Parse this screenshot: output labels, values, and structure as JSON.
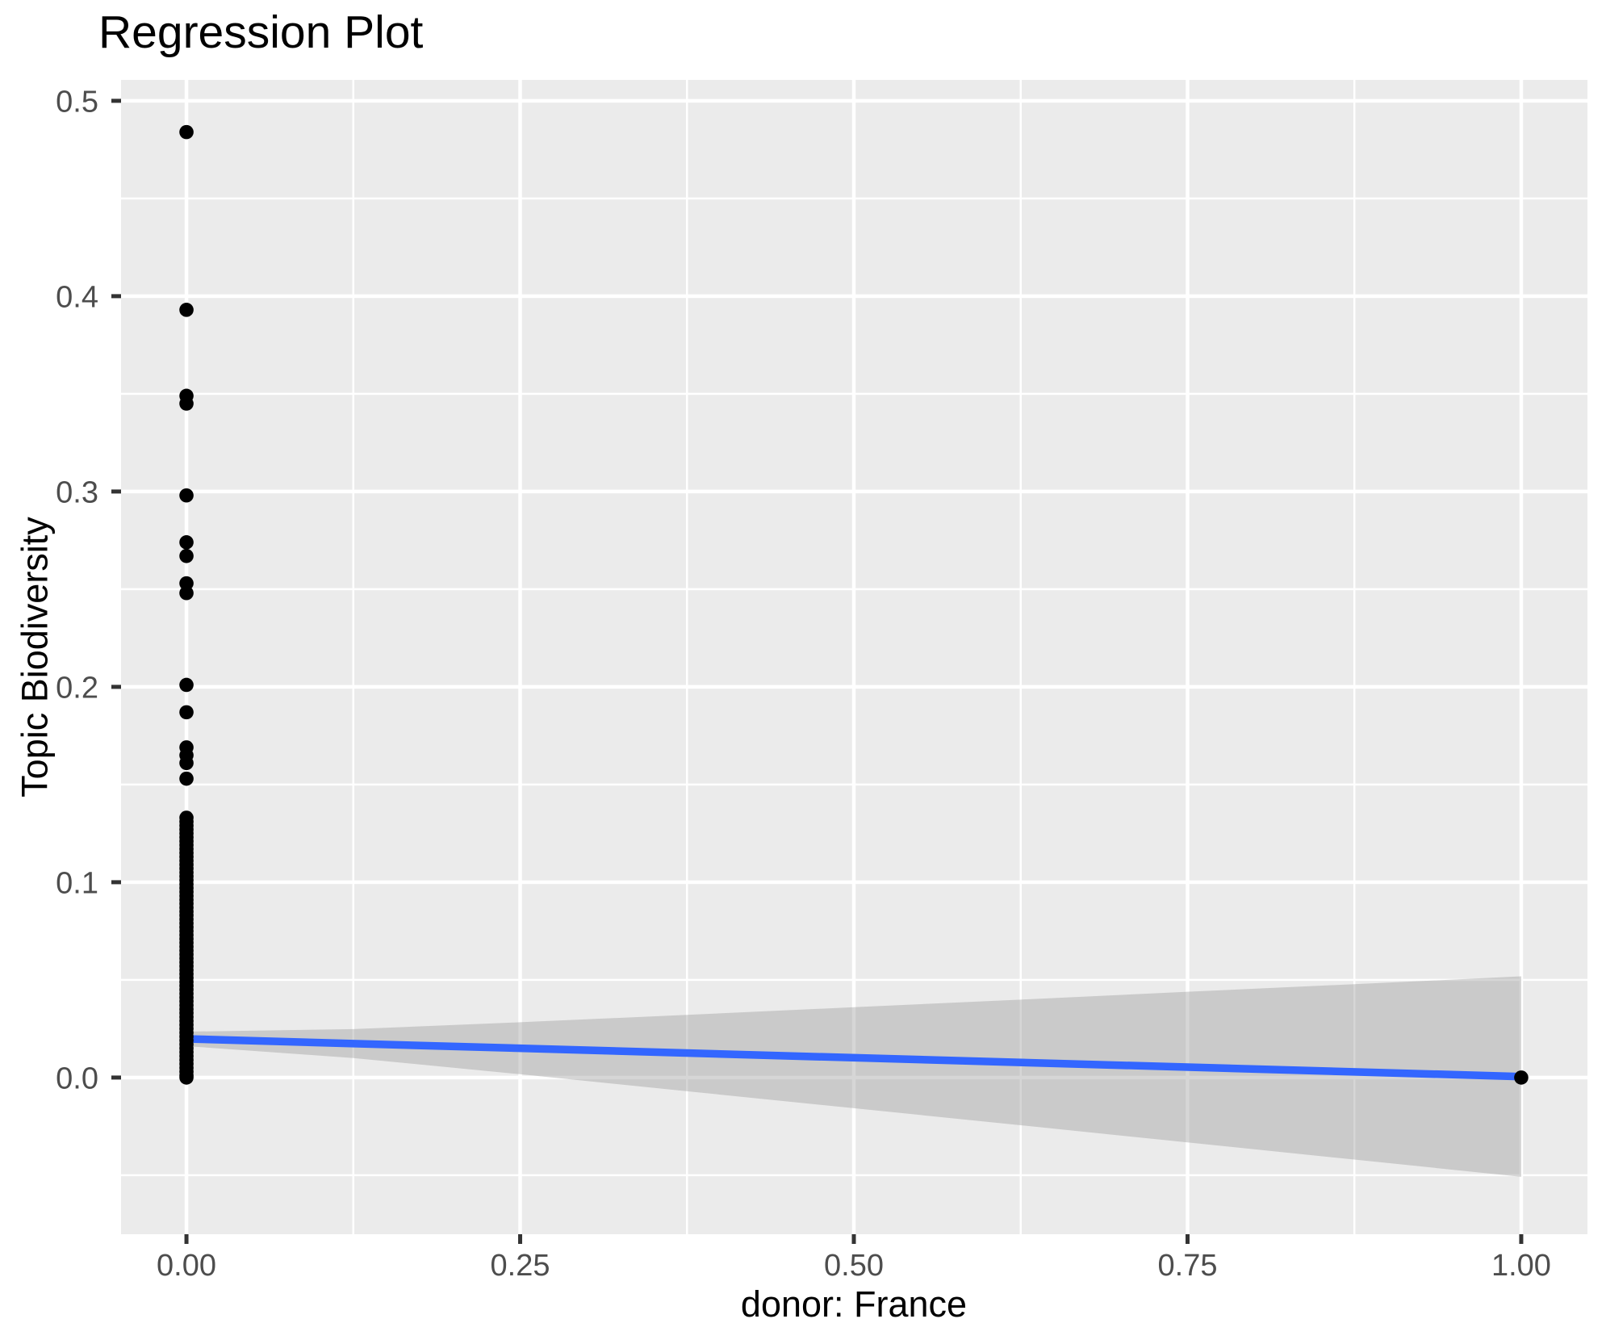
{
  "chart_data": {
    "type": "scatter",
    "title": "Regression Plot",
    "xlabel": "donor: France",
    "ylabel": "Topic Biodiversity",
    "legend": "none",
    "grid": true,
    "background": "#FFFFFF",
    "panel_bg": "#EBEBEB",
    "grid_color": "#FFFFFF",
    "tick_label_color": "#4D4D4D",
    "tick_mark_color": "#333333",
    "text_color": "#000000",
    "x_axis": {
      "range": [
        -0.049,
        1.0496
      ],
      "major_ticks": [
        0,
        0.25,
        0.5,
        0.75,
        1.0
      ],
      "tick_labels": [
        "0.00",
        "0.25",
        "0.50",
        "0.75",
        "1.00"
      ],
      "minor_ticks": [
        0.125,
        0.375,
        0.625,
        0.875
      ]
    },
    "y_axis": {
      "range": [
        -0.0802,
        0.5107
      ],
      "major_ticks": [
        0,
        0.1,
        0.2,
        0.3,
        0.4,
        0.5
      ],
      "tick_labels": [
        "0.0",
        "0.1",
        "0.2",
        "0.3",
        "0.4",
        "0.5"
      ],
      "minor_ticks": [
        -0.05,
        0.05,
        0.15,
        0.25,
        0.35,
        0.45
      ]
    },
    "series": [
      {
        "name": "observations",
        "type": "points",
        "color": "#000000",
        "columns": [
          {
            "x": 0,
            "ys": [
              0.484,
              0.393,
              0.349,
              0.345,
              0.298,
              0.274,
              0.267,
              0.253,
              0.248,
              0.201,
              0.187,
              0.169,
              0.165,
              0.161,
              0.153,
              0.133,
              0.131,
              0.129,
              0.127,
              0.125,
              0.123,
              0.121,
              0.119,
              0.117,
              0.115,
              0.113,
              0.111,
              0.109,
              0.107,
              0.105,
              0.103,
              0.101,
              0.099,
              0.097,
              0.095,
              0.093,
              0.091,
              0.089,
              0.087,
              0.085,
              0.083,
              0.081,
              0.079,
              0.077,
              0.075,
              0.073,
              0.071,
              0.069,
              0.067,
              0.065,
              0.063,
              0.061,
              0.059,
              0.057,
              0.055,
              0.053,
              0.051,
              0.049,
              0.047,
              0.045,
              0.043,
              0.041,
              0.039,
              0.037,
              0.035,
              0.033,
              0.031,
              0.029,
              0.027,
              0.025,
              0.023,
              0.021,
              0.019,
              0.017,
              0.015,
              0.013,
              0.011,
              0.009,
              0.007,
              0.005,
              0.003,
              0.001,
              0.0
            ]
          },
          {
            "x": 1,
            "ys": [
              0.0
            ]
          }
        ]
      },
      {
        "name": "regression-fit",
        "type": "line",
        "color": "#3366FF",
        "x": [
          0,
          1
        ],
        "y": [
          0.0198,
          0.0005
        ]
      },
      {
        "name": "confidence-band",
        "type": "band",
        "color": "#999999",
        "opacity": 0.4,
        "x": [
          0,
          0.125,
          0.25,
          0.375,
          0.5,
          0.625,
          0.75,
          0.875,
          1.0
        ],
        "upper": [
          0.0235,
          0.0248,
          0.0283,
          0.0321,
          0.036,
          0.0399,
          0.0439,
          0.0478,
          0.0518
        ],
        "lower": [
          0.0161,
          0.01,
          0.0017,
          -0.007,
          -0.0157,
          -0.0244,
          -0.0332,
          -0.042,
          -0.0508
        ]
      }
    ]
  }
}
